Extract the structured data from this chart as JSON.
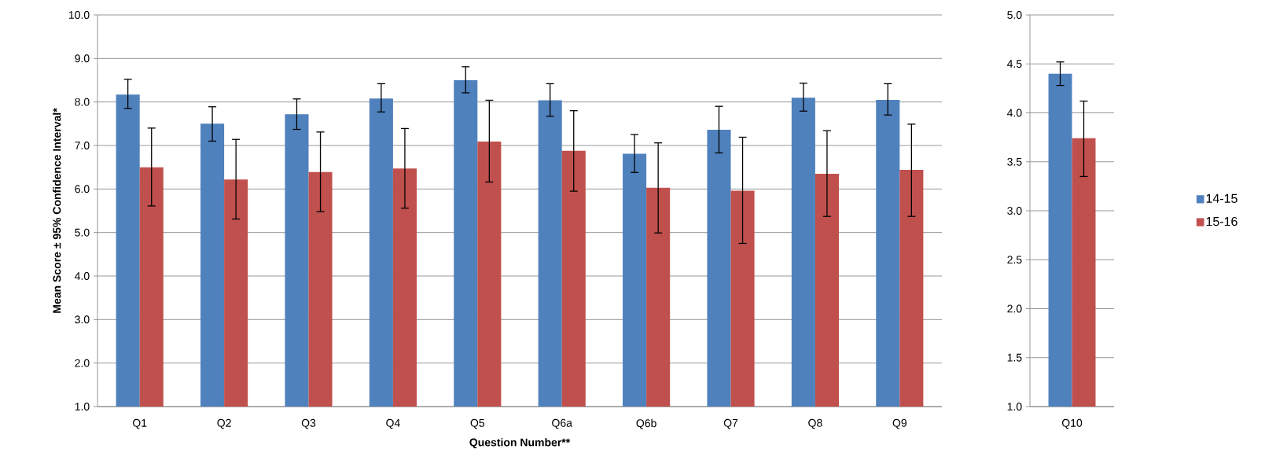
{
  "chart_data": [
    {
      "type": "bar",
      "xlabel": "Question Number**",
      "ylabel": "Mean Score ± 95% Confidence Interval*",
      "categories": [
        "Q1",
        "Q2",
        "Q3",
        "Q4",
        "Q5",
        "Q6a",
        "Q6b",
        "Q7",
        "Q8",
        "Q9"
      ],
      "series": [
        {
          "color": "#4f81bd",
          "values": [
            8.17,
            7.5,
            7.72,
            8.08,
            8.5,
            8.04,
            6.81,
            7.36,
            8.1,
            8.05
          ],
          "errors": [
            [
              7.85,
              8.52
            ],
            [
              7.1,
              7.89
            ],
            [
              7.37,
              8.07
            ],
            [
              7.77,
              8.42
            ],
            [
              8.21,
              8.81
            ],
            [
              7.67,
              8.42
            ],
            [
              6.38,
              7.25
            ],
            [
              6.83,
              7.9
            ],
            [
              7.79,
              8.43
            ],
            [
              7.7,
              8.42
            ]
          ]
        },
        {
          "color": "#c0504d",
          "values": [
            6.5,
            6.22,
            6.39,
            6.47,
            7.09,
            6.88,
            6.03,
            5.96,
            6.35,
            6.44
          ],
          "errors": [
            [
              5.61,
              7.4
            ],
            [
              5.31,
              7.14
            ],
            [
              5.48,
              7.31
            ],
            [
              5.56,
              7.39
            ],
            [
              6.16,
              8.04
            ],
            [
              5.95,
              7.8
            ],
            [
              4.99,
              7.06
            ],
            [
              4.75,
              7.19
            ],
            [
              5.37,
              7.34
            ],
            [
              5.37,
              7.49
            ]
          ]
        }
      ],
      "ylim": [
        1,
        10
      ],
      "yticks": [
        {
          "value": 1,
          "label": "1.0"
        },
        {
          "value": 2,
          "label": "2.0"
        },
        {
          "value": 3,
          "label": "3.0"
        },
        {
          "value": 4,
          "label": "4.0"
        },
        {
          "value": 5,
          "label": "5.0"
        },
        {
          "value": 6,
          "label": "6.0"
        },
        {
          "value": 7,
          "label": "7.0"
        },
        {
          "value": 8,
          "label": "8.0"
        },
        {
          "value": 9,
          "label": "9.0"
        },
        {
          "value": 10,
          "label": "10.0"
        }
      ],
      "grid": "y"
    },
    {
      "type": "bar",
      "categories": [
        "Q10"
      ],
      "series": [
        {
          "name": "14-15",
          "color": "#4f81bd",
          "values": [
            4.4
          ],
          "errors": [
            [
              4.28,
              4.52
            ]
          ]
        },
        {
          "name": "15-16",
          "color": "#c0504d",
          "values": [
            3.74
          ],
          "errors": [
            [
              3.35,
              4.12
            ]
          ]
        }
      ],
      "ylim": [
        1,
        5
      ],
      "yticks": [
        {
          "value": 1,
          "label": "1.0"
        },
        {
          "value": 1.5,
          "label": "1.5"
        },
        {
          "value": 2,
          "label": "2.0"
        },
        {
          "value": 2.5,
          "label": "2.5"
        },
        {
          "value": 3,
          "label": "3.0"
        },
        {
          "value": 3.5,
          "label": "3.5"
        },
        {
          "value": 4,
          "label": "4.0"
        },
        {
          "value": 4.5,
          "label": "4.5"
        },
        {
          "value": 5,
          "label": "5.0"
        }
      ],
      "grid": "y",
      "legend": "right"
    }
  ]
}
